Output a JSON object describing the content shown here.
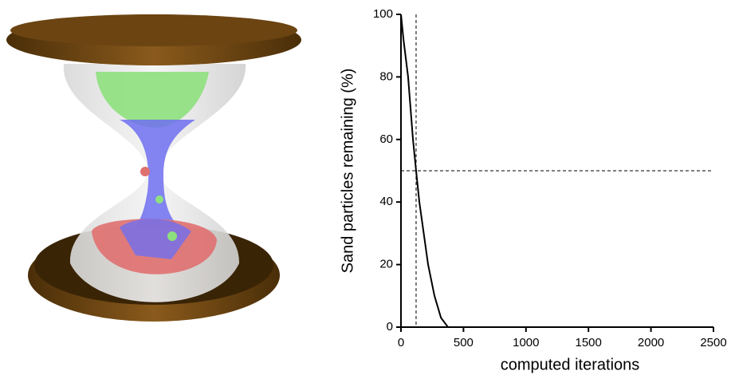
{
  "chart_data": {
    "type": "line",
    "xlabel": "computed iterations",
    "ylabel": "Sand particles remaining (%)",
    "x": [
      0,
      20,
      57,
      96,
      121,
      147,
      217,
      268,
      320,
      376,
      500,
      1000,
      1500,
      2000,
      2500
    ],
    "series": [
      {
        "color": "#000000",
        "values": [
          100,
          92,
          80,
          60,
          50,
          40,
          20,
          10,
          3,
          0,
          0,
          0,
          0,
          0,
          0
        ]
      }
    ],
    "xlim": [
      0,
      2500
    ],
    "xticks": [
      0,
      500,
      1000,
      1500,
      2000,
      2500
    ],
    "ylim": [
      0,
      100
    ],
    "yticks": [
      0,
      20,
      40,
      60,
      80,
      100
    ],
    "reference_x": 121,
    "reference_y": 50
  }
}
